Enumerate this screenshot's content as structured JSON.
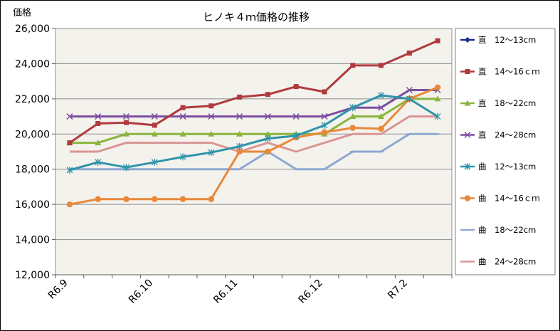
{
  "chart_data": {
    "type": "line",
    "title": "ヒノキ４ｍ価格の推移",
    "ylabel": "価格",
    "xlabel": "",
    "ylim": [
      12000,
      26000
    ],
    "ytick_step": 2000,
    "yticks": [
      "12,000",
      "14,000",
      "16,000",
      "18,000",
      "20,000",
      "22,000",
      "24,000",
      "26,000"
    ],
    "x_labels": [
      {
        "label": "R6.9",
        "index": 0
      },
      {
        "label": "R6.10",
        "index": 3
      },
      {
        "label": "R6.11",
        "index": 6
      },
      {
        "label": "R6.12",
        "index": 9
      },
      {
        "label": "R7.2",
        "index": 12
      }
    ],
    "point_count": 14,
    "grid": "horizontal",
    "legend": "right",
    "plot_background": "#f4f2ec",
    "series": [
      {
        "name": "直　12～13cm",
        "color": "#1b2b8c",
        "marker": "diamond",
        "values": [
          null,
          null,
          null,
          null,
          null,
          null,
          null,
          null,
          null,
          null,
          null,
          null,
          null,
          null
        ]
      },
      {
        "name": "直　14～16ｃｍ",
        "color": "#b03a3e",
        "marker": "square",
        "values": [
          19500,
          20600,
          20650,
          20500,
          21500,
          21600,
          22100,
          22250,
          22700,
          22400,
          23900,
          23900,
          24600,
          25300
        ]
      },
      {
        "name": "直　18～22cm",
        "color": "#8ab53e",
        "marker": "triangle",
        "values": [
          19500,
          19500,
          20000,
          20000,
          20000,
          20000,
          20000,
          20000,
          20000,
          20000,
          21000,
          21000,
          22000,
          22000
        ]
      },
      {
        "name": "直　24～28cm",
        "color": "#7b4fa0",
        "marker": "x",
        "values": [
          21000,
          21000,
          21000,
          21000,
          21000,
          21000,
          21000,
          21000,
          21000,
          21000,
          21500,
          21500,
          22500,
          22500
        ]
      },
      {
        "name": "曲　12～13cm",
        "color": "#2e93ab",
        "marker": "star",
        "values": [
          17950,
          18400,
          18100,
          18400,
          18700,
          18950,
          19300,
          19750,
          19900,
          20500,
          21500,
          22200,
          22000,
          21000
        ]
      },
      {
        "name": "曲　14～16ｃｍ",
        "color": "#e8883a",
        "marker": "circle",
        "values": [
          16000,
          16300,
          16300,
          16300,
          16300,
          16300,
          19000,
          19000,
          19800,
          20100,
          20350,
          20300,
          22000,
          22650
        ]
      },
      {
        "name": "曲　18～22cm",
        "color": "#8fa8d4",
        "marker": "dash",
        "values": [
          18000,
          18000,
          18000,
          18000,
          18000,
          18000,
          18000,
          19000,
          18000,
          18000,
          19000,
          19000,
          20000,
          20000
        ]
      },
      {
        "name": "曲　24～28cm",
        "color": "#d99594",
        "marker": "none",
        "values": [
          19000,
          19000,
          19500,
          19500,
          19500,
          19500,
          19000,
          19500,
          19000,
          19500,
          20000,
          20000,
          21000,
          21000
        ]
      }
    ]
  }
}
